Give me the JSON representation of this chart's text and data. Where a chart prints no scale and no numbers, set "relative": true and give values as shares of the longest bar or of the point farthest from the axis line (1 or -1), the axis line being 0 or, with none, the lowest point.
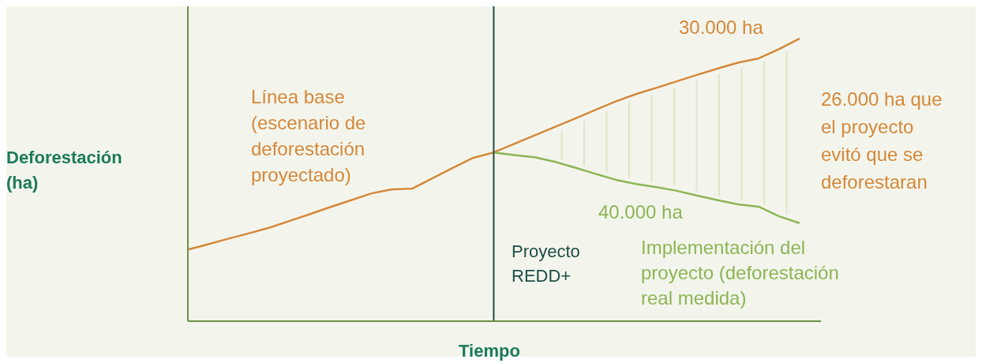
{
  "chart_data": {
    "type": "line",
    "relative": true,
    "xlabel": "Tiempo",
    "ylabel": "Deforestación\n(ha)",
    "categories": [
      null,
      null,
      null,
      null,
      null,
      null,
      null,
      null,
      null,
      null,
      null,
      null,
      null,
      null,
      null,
      null,
      null,
      null,
      null,
      null,
      null,
      null,
      null,
      null,
      null,
      null,
      null,
      null,
      null,
      null,
      null
    ],
    "series": [
      {
        "name": "Línea base\n(escenario de\ndeforestación\nproyectado)",
        "color": "#d4883a",
        "values": [
          0.253,
          0.272,
          0.292,
          0.311,
          0.331,
          0.355,
          0.379,
          0.404,
          0.428,
          0.452,
          0.466,
          0.469,
          0.506,
          0.543,
          0.578,
          0.597,
          0.627,
          0.657,
          0.687,
          0.717,
          0.748,
          0.778,
          0.804,
          0.826,
          0.849,
          0.872,
          0.894,
          0.915,
          0.93,
          0.963,
          1.0
        ]
      },
      {
        "name": "Implementación del\nproyecto (deforestación\nreal medida)",
        "color": "#8db556",
        "values": [
          null,
          null,
          null,
          null,
          null,
          null,
          null,
          null,
          null,
          null,
          null,
          null,
          null,
          null,
          null,
          0.597,
          0.588,
          0.58,
          0.564,
          0.543,
          0.521,
          0.5,
          0.485,
          0.474,
          0.461,
          0.444,
          0.428,
          0.413,
          0.405,
          0.371,
          0.347
        ],
        "lower": [
          null,
          null,
          null,
          null,
          null,
          null,
          null,
          null,
          null,
          null,
          null,
          null,
          null,
          null,
          null,
          null,
          null,
          null,
          0.579,
          0.558,
          0.536,
          0.515,
          0.5,
          0.489,
          0.476,
          0.459,
          0.443,
          0.428,
          0.42,
          0.386,
          0.362
        ],
        "upper": [
          null,
          null,
          null,
          null,
          null,
          null,
          null,
          null,
          null,
          null,
          null,
          null,
          null,
          null,
          null,
          null,
          null,
          null,
          0.659,
          0.697,
          0.728,
          0.758,
          0.784,
          0.806,
          0.829,
          0.852,
          0.874,
          0.895,
          0.91,
          0.943,
          0.98
        ]
      }
    ],
    "ref_lines": [
      {
        "axis": "x",
        "label": "Proyecto\nREDD+",
        "color": "#1e4d45"
      }
    ],
    "annotations": [
      "30.000 ha",
      "26.000 ha que\nel proyecto\nevitó que se\ndeforestaran",
      "40.000 ha"
    ]
  }
}
